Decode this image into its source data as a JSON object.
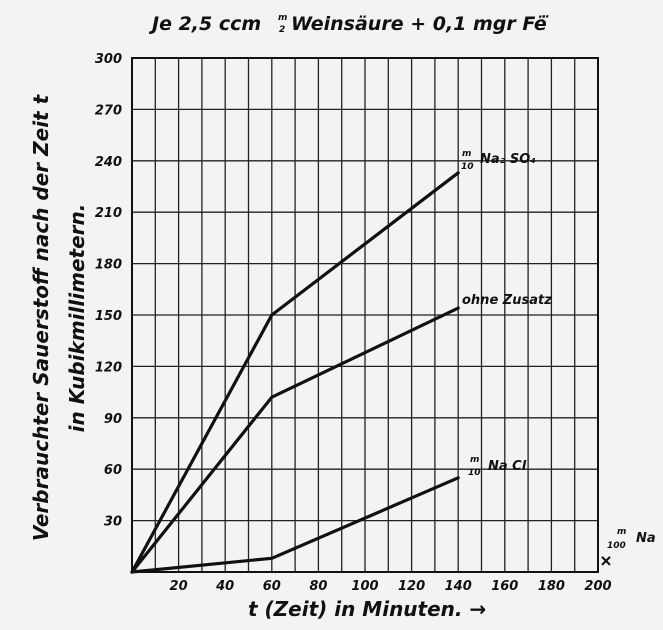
{
  "chart_data": {
    "type": "line",
    "title": {
      "prefix": "Je 2,5 ccm",
      "frac_num": "m",
      "frac_den": "2",
      "suffix": "Weinsäure + 0,1 mgr Fë̈"
    },
    "xlabel": "t (Zeit) in Minuten. →",
    "ylabel": [
      "Verbrauchter Sauerstoff nach der Zeit t",
      "in Kubikmillimetern."
    ],
    "xlim": [
      0,
      200
    ],
    "ylim": [
      0,
      300
    ],
    "x_ticks": [
      "20",
      "40",
      "60",
      "80",
      "100",
      "120",
      "140",
      "160",
      "180",
      "200"
    ],
    "y_ticks": [
      "30",
      "60",
      "90",
      "120",
      "150",
      "180",
      "210",
      "240",
      "270",
      "300"
    ],
    "grid": true,
    "series": [
      {
        "label_num": "m",
        "label_den": "10",
        "label_text": "Na₂ SO₄",
        "x": [
          0,
          60,
          140
        ],
        "y": [
          0,
          150,
          233
        ]
      },
      {
        "label_text": "ohne Zusatz",
        "x": [
          0,
          60,
          140
        ],
        "y": [
          0,
          102,
          154
        ]
      },
      {
        "label_num": "m",
        "label_den": "10",
        "label_text": "Na Cl",
        "x": [
          0,
          60,
          140
        ],
        "y": [
          0,
          8,
          55
        ]
      },
      {
        "label_num": "m",
        "label_den": "100",
        "label_text": "Na",
        "x": [
          200
        ],
        "y": [
          3
        ]
      }
    ]
  }
}
